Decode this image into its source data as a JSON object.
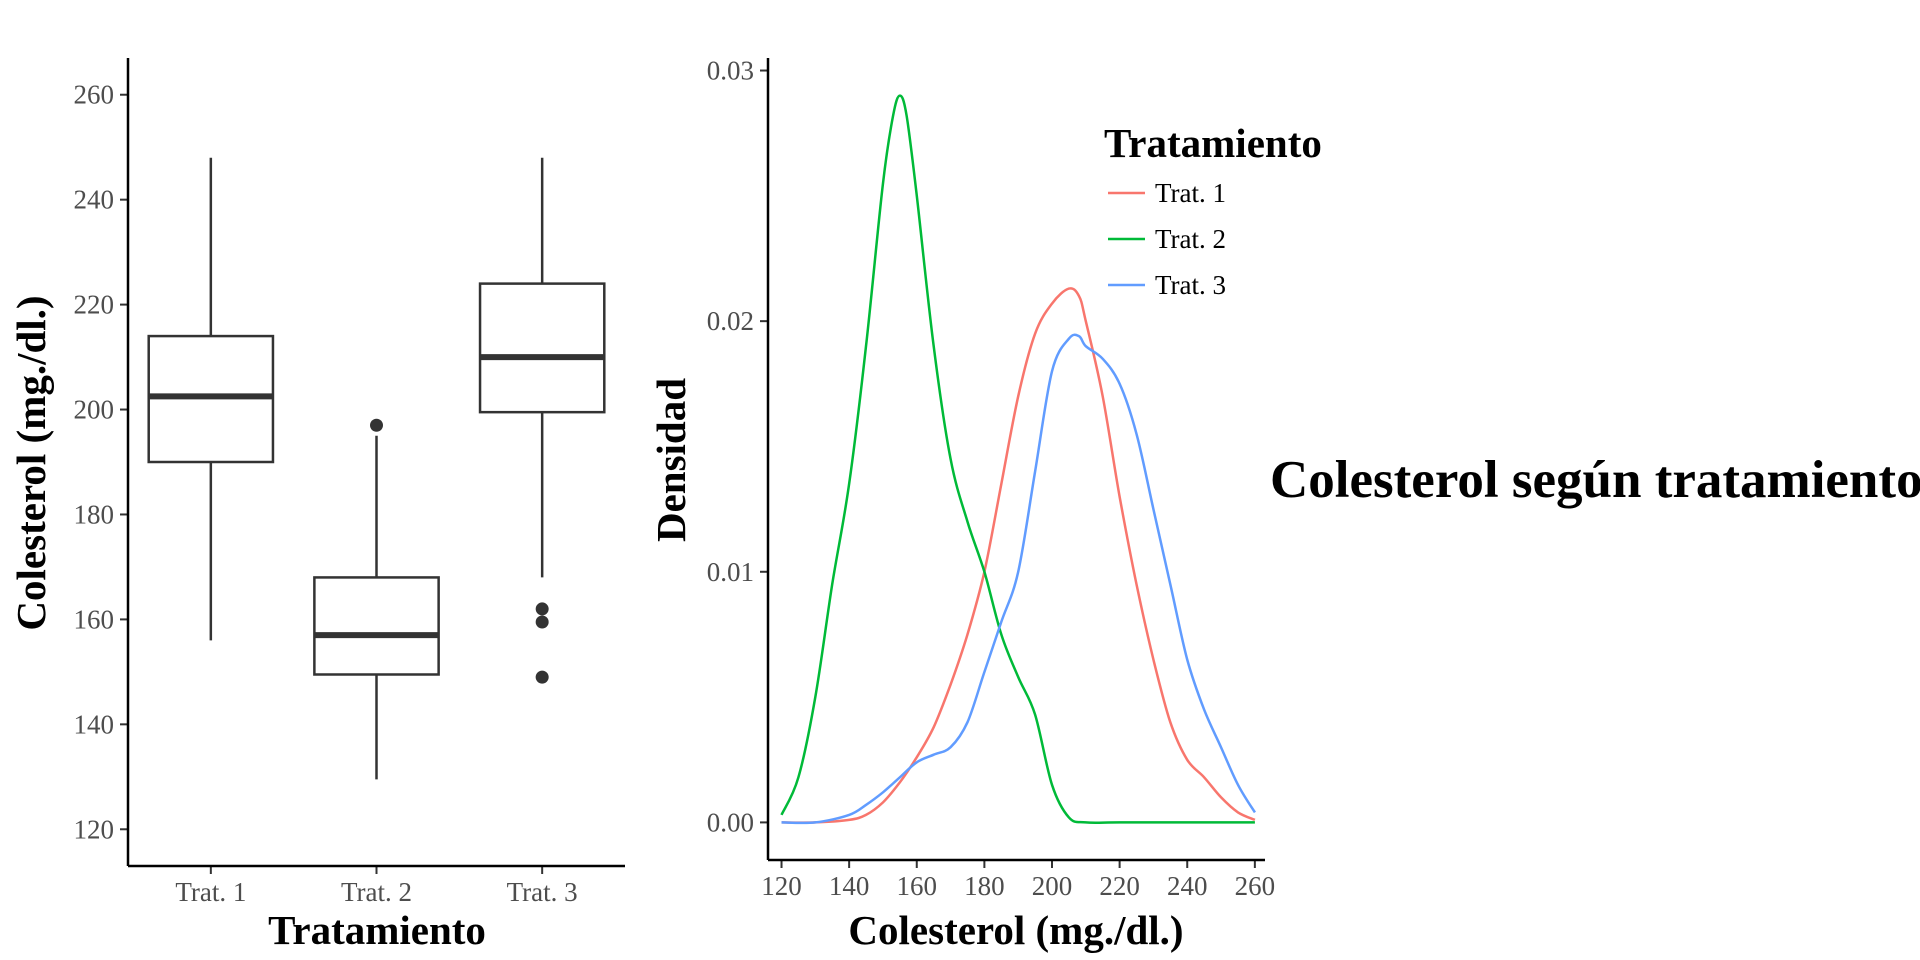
{
  "side_title": "Colesterol según tratamiento",
  "chart_data": [
    {
      "type": "box",
      "xlabel": "Tratamiento",
      "ylabel": "Colesterol (mg./dl.)",
      "ylim": [
        113,
        267
      ],
      "yticks": [
        120,
        140,
        160,
        180,
        200,
        220,
        240,
        260
      ],
      "categories": [
        "Trat. 1",
        "Trat. 2",
        "Trat. 3"
      ],
      "boxes": [
        {
          "category": "Trat. 1",
          "whisker_low": 156,
          "q1": 190,
          "median": 202.5,
          "q3": 214,
          "whisker_high": 248,
          "outliers": []
        },
        {
          "category": "Trat. 2",
          "whisker_low": 129.5,
          "q1": 149.5,
          "median": 157,
          "q3": 168,
          "whisker_high": 195,
          "outliers": [
            197
          ]
        },
        {
          "category": "Trat. 3",
          "whisker_low": 168,
          "q1": 199.5,
          "median": 210,
          "q3": 224,
          "whisker_high": 248,
          "outliers": [
            162,
            159.5,
            149
          ]
        }
      ],
      "colors": {
        "box": "#333333",
        "axis": "#000000"
      }
    },
    {
      "type": "line",
      "xlabel": "Colesterol (mg./dl.)",
      "ylabel": "Densidad",
      "xlim": [
        116,
        263
      ],
      "ylim": [
        -0.0015,
        0.0305
      ],
      "xticks": [
        120,
        140,
        160,
        180,
        200,
        220,
        240,
        260
      ],
      "yticks": [
        0.0,
        0.01,
        0.02,
        0.03
      ],
      "ytick_labels": [
        "0.00",
        "0.01",
        "0.02",
        "0.03"
      ],
      "legend": {
        "title": "Tratamiento",
        "position": "top-right"
      },
      "series": [
        {
          "name": "Trat. 1",
          "color": "#F8766D",
          "x": [
            120,
            130,
            140,
            145,
            150,
            155,
            160,
            165,
            170,
            175,
            180,
            185,
            190,
            195,
            200,
            205,
            208,
            210,
            215,
            220,
            225,
            230,
            235,
            240,
            245,
            250,
            255,
            260
          ],
          "y": [
            0.0,
            0.0,
            0.0001,
            0.0003,
            0.0008,
            0.0016,
            0.0026,
            0.0038,
            0.0055,
            0.0075,
            0.01,
            0.0135,
            0.017,
            0.0195,
            0.0207,
            0.0213,
            0.021,
            0.02,
            0.017,
            0.013,
            0.0095,
            0.0065,
            0.004,
            0.0025,
            0.0018,
            0.001,
            0.0004,
            0.0001
          ]
        },
        {
          "name": "Trat. 2",
          "color": "#00BA38",
          "x": [
            120,
            125,
            130,
            135,
            140,
            145,
            150,
            153,
            155,
            157,
            160,
            165,
            170,
            175,
            180,
            185,
            190,
            195,
            200,
            205,
            210,
            220,
            240,
            260
          ],
          "y": [
            0.0003,
            0.0018,
            0.005,
            0.0095,
            0.0135,
            0.019,
            0.0255,
            0.0282,
            0.029,
            0.0282,
            0.025,
            0.019,
            0.0145,
            0.012,
            0.01,
            0.0075,
            0.0058,
            0.0043,
            0.0015,
            0.0002,
            0.0,
            0.0,
            0.0,
            0.0
          ]
        },
        {
          "name": "Trat. 3",
          "color": "#619CFF",
          "x": [
            120,
            130,
            140,
            145,
            150,
            155,
            160,
            165,
            170,
            175,
            180,
            185,
            190,
            195,
            200,
            205,
            208,
            210,
            215,
            220,
            225,
            230,
            235,
            240,
            245,
            250,
            255,
            260
          ],
          "y": [
            0.0,
            0.0,
            0.0003,
            0.0007,
            0.0012,
            0.0018,
            0.0024,
            0.0027,
            0.003,
            0.004,
            0.006,
            0.008,
            0.01,
            0.014,
            0.018,
            0.0193,
            0.0194,
            0.019,
            0.0185,
            0.0175,
            0.0155,
            0.0125,
            0.0095,
            0.0065,
            0.0045,
            0.003,
            0.0015,
            0.0004
          ]
        }
      ]
    }
  ]
}
